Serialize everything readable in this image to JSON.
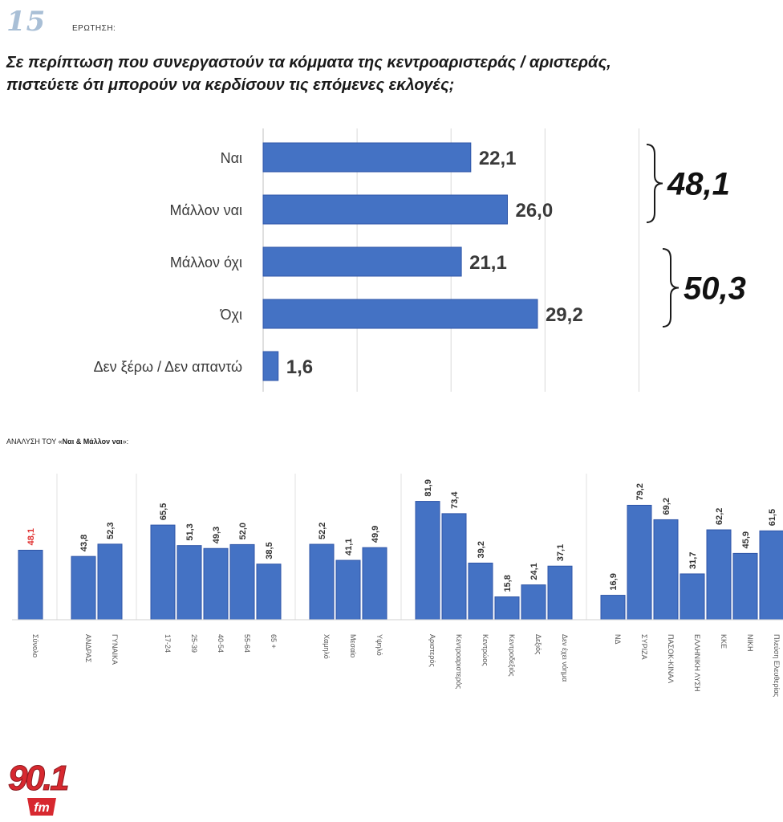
{
  "header": {
    "question_number": "15",
    "question_label": "ΕΡΩΤΗΣΗ:",
    "question_line1": "Σε περίπτωση που συνεργαστούν τα κόμματα της κεντροαριστεράς / αριστεράς,",
    "question_line2": "πιστεύετε ότι μπορούν να κερδίσουν τις επόμενες εκλογές;"
  },
  "breakdown": {
    "title_prefix": "ΑΝΑΛΥΣΗ ΤΟΥ «",
    "title_bold": "Ναι & Μάλλον ναι",
    "title_suffix": "»:"
  },
  "logo": {
    "number": "90.1",
    "suffix": "fm",
    "color": "#d7282f"
  },
  "colors": {
    "bar": "#4472c4",
    "bar_dark": "#2f56a8",
    "highlight": "#e03030"
  },
  "chart_data": [
    {
      "type": "bar",
      "orientation": "horizontal",
      "categories": [
        "Ναι",
        "Μάλλον ναι",
        "Μάλλον όχι",
        "Όχι",
        "Δεν ξέρω / Δεν απαντώ"
      ],
      "values": [
        22.1,
        26.0,
        21.1,
        29.2,
        1.6
      ],
      "value_labels": [
        "22,1",
        "26,0",
        "21,1",
        "29,2",
        "1,6"
      ],
      "groups": [
        {
          "members": [
            "Ναι",
            "Μάλλον ναι"
          ],
          "total": "48,1"
        },
        {
          "members": [
            "Μάλλον όχι",
            "Όχι"
          ],
          "total": "50,3"
        }
      ],
      "xlim": [
        0,
        45
      ],
      "grid": true
    },
    {
      "type": "bar",
      "orientation": "vertical",
      "categories": [
        "Σύνολο",
        "ΑΝΔΡΑΣ",
        "ΓΥΝΑΙΚΑ",
        "17-24",
        "25-39",
        "40-54",
        "55-64",
        "65 +",
        "Χαμηλό",
        "Μεσαίο",
        "Υψηλό",
        "Αριστερός",
        "Κεντροαριστερός",
        "Κεντρώος",
        "Κεντροδεξιός",
        "Δεξιός",
        "Δεν έχει νόημα",
        "ΝΔ",
        "ΣΥΡΙΖΑ",
        "ΠΑΣΟΚ-ΚΙΝΑΛ",
        "ΕΛΛΗΝΙΚΗ ΛΥΣΗ",
        "ΚΚΕ",
        "ΝΙΚΗ",
        "Πλεύση Ελευθερίας"
      ],
      "values": [
        48.1,
        43.8,
        52.3,
        65.5,
        51.3,
        49.3,
        52.0,
        38.5,
        52.2,
        41.1,
        49.9,
        81.9,
        73.4,
        39.2,
        15.8,
        24.1,
        37.1,
        16.9,
        79.2,
        69.2,
        31.7,
        62.2,
        45.9,
        61.5
      ],
      "value_labels": [
        "48,1",
        "43,8",
        "52,3",
        "65,5",
        "51,3",
        "49,3",
        "52,0",
        "38,5",
        "52,2",
        "41,1",
        "49,9",
        "81,9",
        "73,4",
        "39,2",
        "15,8",
        "24,1",
        "37,1",
        "16,9",
        "79,2",
        "69,2",
        "31,7",
        "62,2",
        "45,9",
        "61,5"
      ],
      "group_index": [
        0,
        1,
        1,
        2,
        2,
        2,
        2,
        2,
        3,
        3,
        3,
        4,
        4,
        4,
        4,
        4,
        4,
        5,
        5,
        5,
        5,
        5,
        5,
        5
      ],
      "highlight": "Σύνολο",
      "ylim": [
        0,
        100
      ],
      "grid": true
    }
  ]
}
